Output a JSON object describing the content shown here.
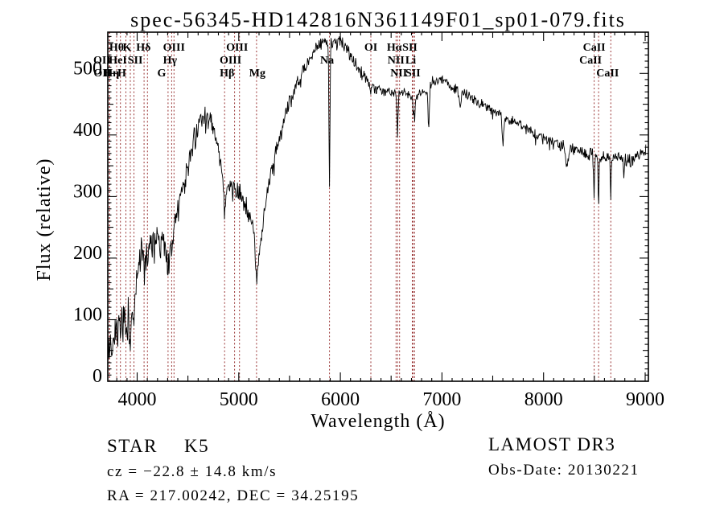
{
  "chart_data": {
    "type": "line",
    "title": "spec-56345-HD142816N361149F01_sp01-079.fits",
    "xlabel": "Wavelength (Å)",
    "ylabel": "Flux (relative)",
    "xlim": [
      3711,
      9032
    ],
    "ylim": [
      0,
      567
    ],
    "x_ticks": [
      4000,
      5000,
      6000,
      7000,
      8000,
      9000
    ],
    "y_ticks": [
      0,
      100,
      200,
      300,
      400,
      500
    ],
    "x_minor_step": 100,
    "y_minor_step": 10,
    "grid": false,
    "legend": "none",
    "line_color": "#000000",
    "marker_line_color": "#993333",
    "background": "#ffffff",
    "series_end_wavelength": 9008,
    "noise_seed": 42,
    "line_markers": [
      {
        "label": "Hθ",
        "row": 1,
        "wl": 3798,
        "dx": 0
      },
      {
        "label": "K",
        "row": 1,
        "wl": 3933,
        "dx": -4
      },
      {
        "label": "Hδ",
        "row": 1,
        "wl": 4101,
        "dx": -5
      },
      {
        "label": "OIII",
        "row": 1,
        "wl": 4363,
        "dx": 0
      },
      {
        "label": "OIII",
        "row": 1,
        "wl": 5007,
        "dx": -3
      },
      {
        "label": "OI",
        "row": 1,
        "wl": 6300,
        "dx": 0
      },
      {
        "label": "Hα",
        "row": 1,
        "wl": 6563,
        "dx": -4
      },
      {
        "label": "SII",
        "row": 1,
        "wl": 6716,
        "dx": -4
      },
      {
        "label": "CaII",
        "row": 1,
        "wl": 8498,
        "dx": 0
      },
      {
        "label": "OII",
        "row": 2,
        "wl": 3726,
        "dx": -9
      },
      {
        "label": "HeI",
        "row": 2,
        "wl": 3889,
        "dx": -10
      },
      {
        "label": "SII",
        "row": 2,
        "wl": 4068,
        "dx": -11
      },
      {
        "label": "Hγ",
        "row": 2,
        "wl": 4340,
        "dx": -2
      },
      {
        "label": "OIII",
        "row": 2,
        "wl": 4959,
        "dx": -5
      },
      {
        "label": "Na",
        "row": 2,
        "wl": 5893,
        "dx": -3
      },
      {
        "label": "NII",
        "row": 2,
        "wl": 6548,
        "dx": 0
      },
      {
        "label": "Li",
        "row": 2,
        "wl": 6708,
        "dx": -2
      },
      {
        "label": "CaII",
        "row": 2,
        "wl": 8542,
        "dx": -10
      },
      {
        "label": "OII",
        "row": 3,
        "wl": 3729,
        "dx": -9
      },
      {
        "label": "Hη",
        "row": 3,
        "wl": 3835,
        "dx": -11
      },
      {
        "label": "H",
        "row": 3,
        "wl": 3968,
        "dx": -15
      },
      {
        "label": "G",
        "row": 3,
        "wl": 4304,
        "dx": -8
      },
      {
        "label": "Hβ",
        "row": 3,
        "wl": 4861,
        "dx": 3
      },
      {
        "label": "Mg",
        "row": 3,
        "wl": 5175,
        "dx": 1
      },
      {
        "label": "NII",
        "row": 3,
        "wl": 6583,
        "dx": -1
      },
      {
        "label": "SII",
        "row": 3,
        "wl": 6731,
        "dx": -2
      },
      {
        "label": "CaII",
        "row": 3,
        "wl": 8662,
        "dx": -4
      }
    ],
    "continuum": [
      [
        3711,
        55
      ],
      [
        3760,
        70
      ],
      [
        3810,
        85
      ],
      [
        3860,
        95
      ],
      [
        3910,
        105
      ],
      [
        3960,
        130
      ],
      [
        4000,
        170
      ],
      [
        4040,
        200
      ],
      [
        4090,
        215
      ],
      [
        4140,
        228
      ],
      [
        4200,
        228
      ],
      [
        4260,
        222
      ],
      [
        4320,
        218
      ],
      [
        4380,
        265
      ],
      [
        4440,
        305
      ],
      [
        4500,
        350
      ],
      [
        4560,
        390
      ],
      [
        4620,
        420
      ],
      [
        4670,
        432
      ],
      [
        4720,
        420
      ],
      [
        4770,
        398
      ],
      [
        4820,
        360
      ],
      [
        4860,
        315
      ],
      [
        4900,
        310
      ],
      [
        4950,
        318
      ],
      [
        5000,
        308
      ],
      [
        5060,
        290
      ],
      [
        5120,
        262
      ],
      [
        5170,
        228
      ],
      [
        5220,
        222
      ],
      [
        5270,
        300
      ],
      [
        5320,
        340
      ],
      [
        5380,
        380
      ],
      [
        5440,
        420
      ],
      [
        5500,
        452
      ],
      [
        5560,
        478
      ],
      [
        5620,
        500
      ],
      [
        5680,
        518
      ],
      [
        5740,
        535
      ],
      [
        5800,
        548
      ],
      [
        5860,
        555
      ],
      [
        5920,
        550
      ],
      [
        5980,
        552
      ],
      [
        6040,
        545
      ],
      [
        6100,
        530
      ],
      [
        6160,
        513
      ],
      [
        6220,
        498
      ],
      [
        6280,
        485
      ],
      [
        6340,
        477
      ],
      [
        6400,
        472
      ],
      [
        6460,
        470
      ],
      [
        6520,
        470
      ],
      [
        6580,
        472
      ],
      [
        6640,
        470
      ],
      [
        6700,
        465
      ],
      [
        6760,
        462
      ],
      [
        6820,
        470
      ],
      [
        6880,
        480
      ],
      [
        6940,
        492
      ],
      [
        7000,
        490
      ],
      [
        7080,
        482
      ],
      [
        7160,
        473
      ],
      [
        7240,
        465
      ],
      [
        7320,
        457
      ],
      [
        7400,
        449
      ],
      [
        7480,
        442
      ],
      [
        7560,
        436
      ],
      [
        7640,
        428
      ],
      [
        7720,
        421
      ],
      [
        7800,
        413
      ],
      [
        7880,
        405
      ],
      [
        7960,
        398
      ],
      [
        8040,
        392
      ],
      [
        8120,
        386
      ],
      [
        8200,
        380
      ],
      [
        8280,
        376
      ],
      [
        8360,
        372
      ],
      [
        8440,
        369
      ],
      [
        8520,
        366
      ],
      [
        8600,
        363
      ],
      [
        8680,
        368
      ],
      [
        8760,
        362
      ],
      [
        8840,
        360
      ],
      [
        8920,
        365
      ],
      [
        9008,
        372
      ]
    ],
    "absorption_lines": [
      [
        3933,
        45,
        8
      ],
      [
        3968,
        40,
        8
      ],
      [
        4101,
        30,
        6
      ],
      [
        4226,
        35,
        5
      ],
      [
        4304,
        35,
        12
      ],
      [
        4340,
        20,
        5
      ],
      [
        4861,
        45,
        8
      ],
      [
        5175,
        55,
        14
      ],
      [
        5893,
        235,
        5
      ],
      [
        6300,
        18,
        4
      ],
      [
        6563,
        75,
        5
      ],
      [
        6717,
        30,
        4
      ],
      [
        6731,
        40,
        4
      ],
      [
        6870,
        60,
        7
      ],
      [
        7180,
        25,
        9
      ],
      [
        7600,
        48,
        8
      ],
      [
        8230,
        30,
        10
      ],
      [
        8498,
        62,
        4
      ],
      [
        8542,
        80,
        4
      ],
      [
        8662,
        72,
        4
      ],
      [
        8790,
        35,
        4
      ]
    ],
    "noise_profile": [
      [
        3711,
        32
      ],
      [
        3850,
        34
      ],
      [
        3950,
        30
      ],
      [
        4050,
        26
      ],
      [
        4200,
        22
      ],
      [
        4400,
        18
      ],
      [
        4700,
        14
      ],
      [
        5000,
        13
      ],
      [
        5300,
        12
      ],
      [
        5700,
        9
      ],
      [
        6000,
        8
      ],
      [
        6500,
        8
      ],
      [
        7000,
        7
      ],
      [
        7500,
        7
      ],
      [
        8000,
        8
      ],
      [
        8500,
        9
      ],
      [
        9008,
        10
      ]
    ]
  },
  "footer": {
    "object_class": "STAR",
    "subclass": "K5",
    "cz_line": "cz = −22.8 ± 14.8 km/s",
    "ra_dec_line": "RA = 217.00242, DEC =  34.25195",
    "survey": "LAMOST DR3",
    "obs_date_line": "Obs-Date: 20130221"
  }
}
